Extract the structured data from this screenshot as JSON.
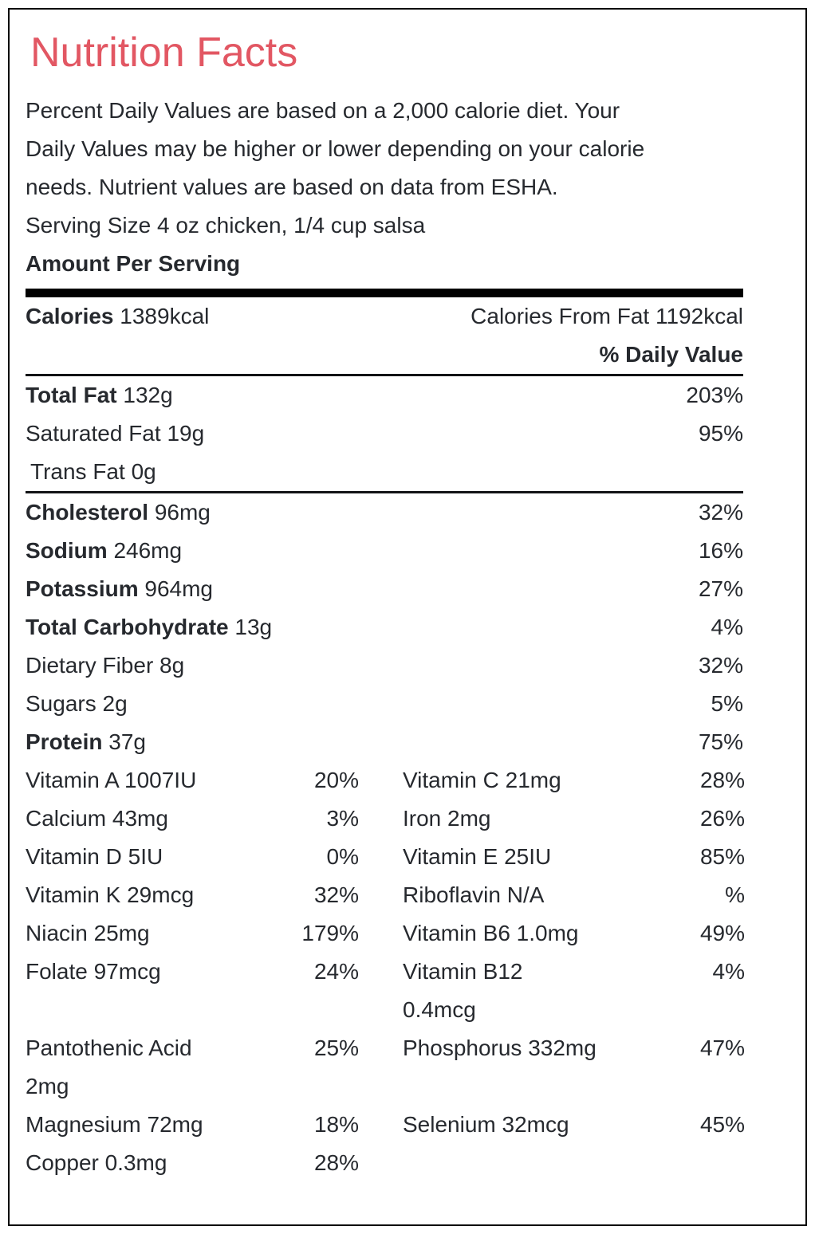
{
  "title": "Nutrition Facts",
  "theme": {
    "accent_color": "#e25763",
    "text_color": "#26292e",
    "rule_color": "#010101"
  },
  "description_lines": [
    "Percent Daily Values are based on a 2,000 calorie diet. Your",
    "Daily Values may be higher or lower depending on your calorie",
    "needs. Nutrient values are based on data from ESHA."
  ],
  "serving_size_line": "Serving Size 4 oz chicken, 1/4 cup salsa",
  "amount_per_serving_label": "Amount Per Serving",
  "calories": {
    "label": "Calories",
    "value": "1389kcal",
    "from_fat": "Calories From Fat 1192kcal"
  },
  "daily_value_header": "% Daily Value",
  "main_rows": [
    {
      "label": "Total Fat",
      "amount": "132g",
      "pct": "203%",
      "bold": true,
      "indent": false,
      "divider_after": false
    },
    {
      "label": "Saturated Fat",
      "amount": "19g",
      "pct": "95%",
      "bold": false,
      "indent": false,
      "divider_after": false
    },
    {
      "label": "Trans Fat",
      "amount": "0g",
      "pct": "",
      "bold": false,
      "indent": true,
      "divider_after": true
    },
    {
      "label": "Cholesterol",
      "amount": "96mg",
      "pct": "32%",
      "bold": true,
      "indent": false,
      "divider_after": false
    },
    {
      "label": "Sodium",
      "amount": "246mg",
      "pct": "16%",
      "bold": true,
      "indent": false,
      "divider_after": false
    },
    {
      "label": "Potassium",
      "amount": "964mg",
      "pct": "27%",
      "bold": true,
      "indent": false,
      "divider_after": false
    },
    {
      "label": "Total Carbohydrate",
      "amount": "13g",
      "pct": "4%",
      "bold": true,
      "indent": false,
      "divider_after": false
    },
    {
      "label": "Dietary Fiber",
      "amount": "8g",
      "pct": "32%",
      "bold": false,
      "indent": false,
      "divider_after": false
    },
    {
      "label": "Sugars",
      "amount": "2g",
      "pct": "5%",
      "bold": false,
      "indent": false,
      "divider_after": false
    },
    {
      "label": "Protein",
      "amount": "37g",
      "pct": "75%",
      "bold": true,
      "indent": false,
      "divider_after": false
    }
  ],
  "vitamin_rows": [
    {
      "left": {
        "label": "Vitamin A 1007IU",
        "pct": "20%"
      },
      "right": {
        "label": "Vitamin C 21mg",
        "pct": "28%"
      }
    },
    {
      "left": {
        "label": "Calcium 43mg",
        "pct": "3%"
      },
      "right": {
        "label": "Iron 2mg",
        "pct": "26%"
      }
    },
    {
      "left": {
        "label": "Vitamin D 5IU",
        "pct": "0%"
      },
      "right": {
        "label": "Vitamin E 25IU",
        "pct": "85%"
      }
    },
    {
      "left": {
        "label": "Vitamin K 29mcg",
        "pct": "32%"
      },
      "right": {
        "label": "Riboflavin N/A",
        "pct": "%"
      }
    },
    {
      "left": {
        "label": "Niacin 25mg",
        "pct": "179%"
      },
      "right": {
        "label": "Vitamin B6 1.0mg",
        "pct": "49%"
      }
    },
    {
      "left": {
        "label": "Folate 97mcg",
        "pct": "24%"
      },
      "right": {
        "label": "Vitamin B12 0.4mcg",
        "pct": "4%"
      }
    },
    {
      "left": {
        "label": "Pantothenic Acid 2mg",
        "pct": "25%"
      },
      "right": {
        "label": "Phosphorus 332mg",
        "pct": "47%"
      }
    },
    {
      "left": {
        "label": "Magnesium 72mg",
        "pct": "18%"
      },
      "right": {
        "label": "Selenium 32mcg",
        "pct": "45%"
      }
    },
    {
      "left": {
        "label": "Copper 0.3mg",
        "pct": "28%"
      },
      "right": {
        "label": "",
        "pct": ""
      }
    }
  ]
}
